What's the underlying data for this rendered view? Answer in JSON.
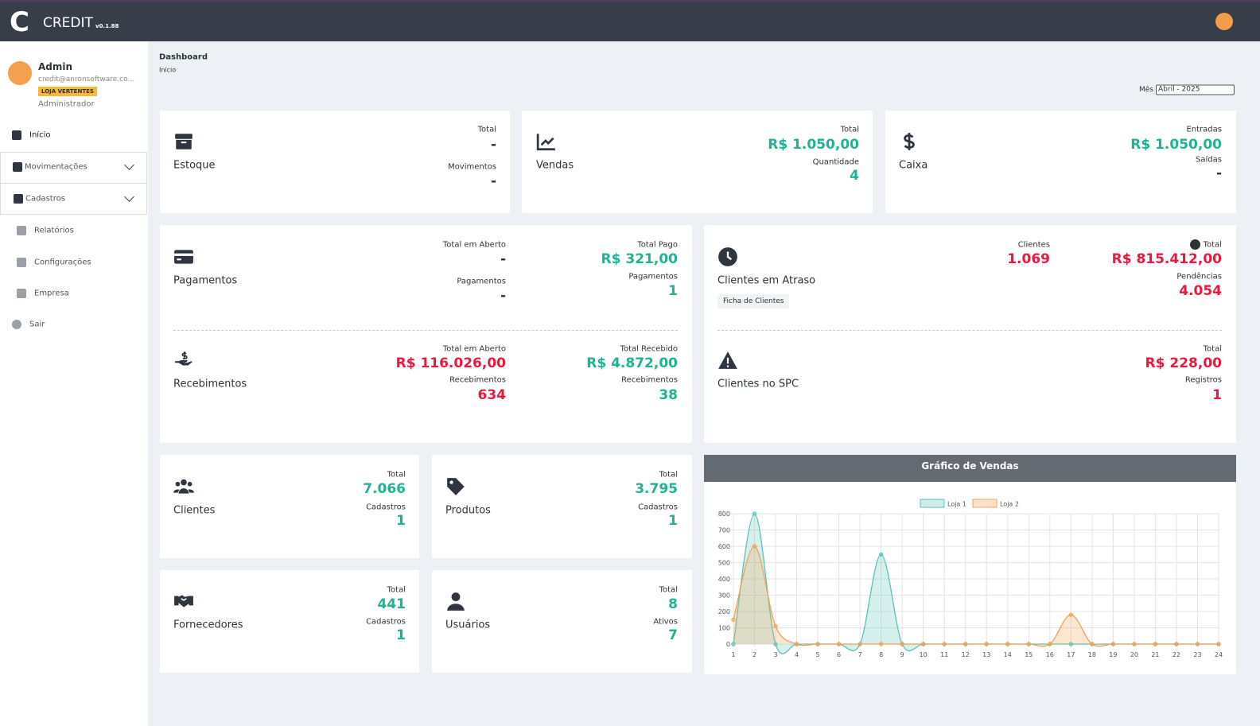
{
  "header": {
    "logo": "C",
    "title": "CREDIT",
    "version": "v0.1.88"
  },
  "sidebar": {
    "user": {
      "name": "Admin",
      "email": "credit@anronsoftware.co...",
      "store": "LOJA VERTENTES",
      "role": "Administrador"
    },
    "menu": [
      "Início",
      "Movimentações",
      "Cadastros",
      "Relatórios",
      "Configurações",
      "Empresa",
      "Sair"
    ]
  },
  "breadcrumb": {
    "title": "Dashboard",
    "current": "Início"
  },
  "filter": {
    "label": "Mês",
    "value": "Abril - 2025"
  },
  "cards": [
    {
      "title": "Estoque",
      "stats": [
        {
          "label": "Total",
          "value": "-"
        },
        {
          "label": "Movimentos",
          "value": "-"
        }
      ]
    },
    {
      "title": "Vendas",
      "stats": [
        {
          "label": "Total",
          "value": "R$ 1.050,00"
        },
        {
          "label": "Quantidade",
          "value": "4"
        }
      ]
    },
    {
      "title": "Caixa",
      "stats": [
        {
          "label": "Entradas",
          "value": "R$ 1.050,00"
        },
        {
          "label": "Saídas",
          "value": "-"
        }
      ]
    },
    {
      "title": "Pagamentos",
      "stats": [
        {
          "label": "Total em Aberto",
          "value": "-"
        },
        {
          "label": "Pagamentos",
          "value": "-"
        },
        {
          "label": "Total Pago",
          "value": "R$ 321,00"
        },
        {
          "label": "Pagamentos",
          "value": "1"
        }
      ]
    },
    {
      "title": "Recebimentos",
      "stats": [
        {
          "label": "Total em Aberto",
          "value": "R$ 116.026,00"
        },
        {
          "label": "Recebimentos",
          "value": "634"
        },
        {
          "label": "Total Recebido",
          "value": "R$ 4.872,00"
        },
        {
          "label": "Recebimentos",
          "value": "38"
        }
      ]
    },
    {
      "title": "Clientes em Atraso",
      "button": "Ficha de Clientes",
      "stats": [
        {
          "label": "Clientes",
          "value": "1.069"
        },
        {
          "label": "Total",
          "value": "R$ 815.412,00"
        },
        {
          "label": "Pendências",
          "value": "4.054"
        }
      ]
    },
    {
      "title": "Clientes no SPC",
      "stats": [
        {
          "label": "Total",
          "value": "R$ 228,00"
        },
        {
          "label": "Registros",
          "value": "1"
        }
      ]
    },
    {
      "title": "Clientes",
      "stats": [
        {
          "label": "Total",
          "value": "7.066"
        },
        {
          "label": "Cadastros",
          "value": "1"
        }
      ]
    },
    {
      "title": "Produtos",
      "stats": [
        {
          "label": "Total",
          "value": "3.795"
        },
        {
          "label": "Cadastros",
          "value": "1"
        }
      ]
    },
    {
      "title": "Fornecedores",
      "stats": [
        {
          "label": "Total",
          "value": "441"
        },
        {
          "label": "Cadastros",
          "value": "1"
        }
      ]
    },
    {
      "title": "Usuários",
      "stats": [
        {
          "label": "Total",
          "value": "8"
        },
        {
          "label": "Ativos",
          "value": "7"
        }
      ]
    }
  ],
  "chart_data": {
    "type": "line",
    "title": "Gráfico de Vendas",
    "x": [
      1,
      2,
      3,
      4,
      5,
      6,
      7,
      8,
      9,
      10,
      11,
      12,
      13,
      14,
      15,
      16,
      17,
      18,
      19,
      20,
      21,
      22,
      23,
      24
    ],
    "series": [
      {
        "name": "Loja 1",
        "color": "#5cc2b8",
        "values": [
          0,
          800,
          0,
          0,
          0,
          0,
          0,
          550,
          0,
          0,
          0,
          0,
          0,
          0,
          0,
          0,
          0,
          0,
          0,
          0,
          0,
          0,
          0,
          0
        ]
      },
      {
        "name": "Loja 2",
        "color": "#f2a154",
        "values": [
          150,
          600,
          110,
          0,
          0,
          0,
          0,
          0,
          0,
          0,
          0,
          0,
          0,
          0,
          0,
          0,
          180,
          0,
          0,
          0,
          0,
          0,
          0,
          0
        ]
      }
    ],
    "xlim": [
      1,
      24
    ],
    "ylim": [
      0,
      800
    ],
    "yticks": [
      0,
      100,
      200,
      300,
      400,
      500,
      600,
      700,
      800
    ],
    "grid": true
  }
}
